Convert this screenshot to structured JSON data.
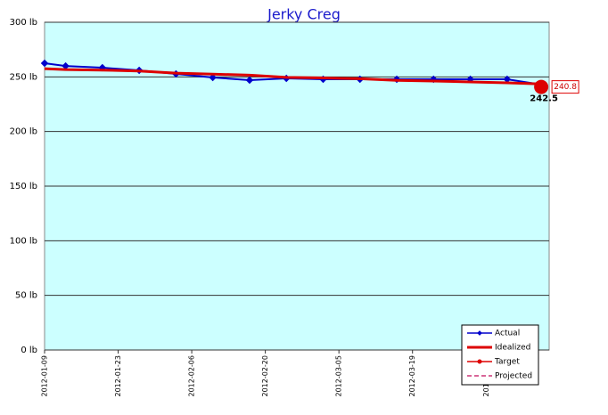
{
  "chart_data": {
    "type": "line",
    "title": "Jerky Creg",
    "x": [
      "2012-01-09",
      "2012-01-13",
      "2012-01-20",
      "2012-01-27",
      "2012-02-03",
      "2012-02-10",
      "2012-02-17",
      "2012-02-24",
      "2012-03-02",
      "2012-03-09",
      "2012-03-16",
      "2012-03-23",
      "2012-03-30",
      "2012-04-06",
      "2012-04-13"
    ],
    "series": [
      {
        "name": "Actual",
        "color": "#0000cc",
        "values": [
          262.5,
          260,
          258.4,
          256,
          252.7,
          249.5,
          247,
          248.6,
          247.8,
          247.8,
          247.8,
          247.8,
          247.8,
          247.8,
          242.5
        ]
      },
      {
        "name": "Idealized",
        "color": "#dd0000",
        "values": [
          257.5,
          256.7,
          256.2,
          255.4,
          253.4,
          252.5,
          251.6,
          249.6,
          249,
          248.3,
          246.8,
          246.2,
          245.4,
          244.6,
          243.4
        ]
      },
      {
        "name": "Target",
        "color": "#dd0000",
        "values": [
          null,
          null,
          null,
          null,
          null,
          null,
          null,
          null,
          null,
          null,
          null,
          null,
          null,
          null,
          240.8
        ]
      },
      {
        "name": "Projected",
        "color": "#cc3377",
        "values": [
          null,
          null,
          null,
          null,
          null,
          null,
          null,
          null,
          null,
          null,
          null,
          null,
          null,
          null,
          null
        ]
      }
    ],
    "xlim": [
      "2012-01-09",
      "2012-04-14"
    ],
    "xticks": [
      "2012-01-09",
      "2012-01-23",
      "2012-02-06",
      "2012-02-20",
      "2012-03-05",
      "2012-03-19",
      "2012-04-02"
    ],
    "ylim": [
      0,
      300
    ],
    "yticks": [
      {
        "value": 0,
        "label": "0 lb"
      },
      {
        "value": 50,
        "label": "50 lb"
      },
      {
        "value": 100,
        "label": "100 lb"
      },
      {
        "value": 150,
        "label": "150 lb"
      },
      {
        "value": 200,
        "label": "200 lb"
      },
      {
        "value": 250,
        "label": "250 lb"
      },
      {
        "value": 300,
        "label": "300 lb"
      }
    ],
    "grid": true,
    "legend": "bottom-right",
    "background": "#ccffff"
  }
}
